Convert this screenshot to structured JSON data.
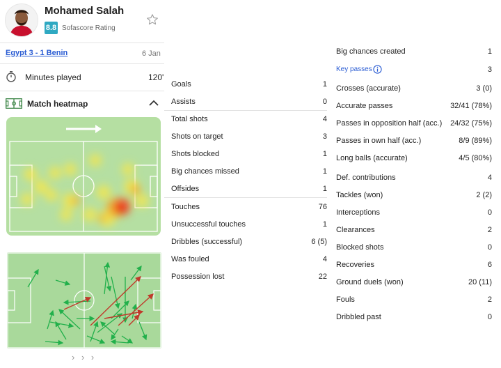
{
  "player": {
    "name": "Mohamed Salah",
    "rating": "8.8",
    "rating_label": "Sofascore Rating",
    "favorite_icon": "star-icon"
  },
  "match": {
    "title": "Egypt 3 - 1 Benin",
    "date": "6 Jan"
  },
  "minutes": {
    "label": "Minutes played",
    "value": "120'"
  },
  "heatmap": {
    "title": "Match heatmap",
    "more": "› › ›"
  },
  "col1": [
    {
      "label": "Goals",
      "value": "1"
    },
    {
      "label": "Assists",
      "value": "0"
    },
    {
      "label": "Total shots",
      "value": "4"
    },
    {
      "label": "Shots on target",
      "value": "3"
    },
    {
      "label": "Shots blocked",
      "value": "1"
    },
    {
      "label": "Big chances missed",
      "value": "1"
    },
    {
      "label": "Offsides",
      "value": "1"
    },
    {
      "label": "Touches",
      "value": "76"
    },
    {
      "label": "Unsuccessful touches",
      "value": "1"
    },
    {
      "label": "Dribbles (successful)",
      "value": "6 (5)"
    },
    {
      "label": "Was fouled",
      "value": "4"
    },
    {
      "label": "Possession lost",
      "value": "22"
    }
  ],
  "col2": [
    {
      "label": "Big chances created",
      "value": "1"
    },
    {
      "label": "Key passes",
      "value": "3"
    },
    {
      "label": "Crosses (accurate)",
      "value": "3 (0)"
    },
    {
      "label": "Accurate passes",
      "value": "32/41 (78%)"
    },
    {
      "label": "Passes in opposition half (acc.)",
      "value": "24/32 (75%)"
    },
    {
      "label": "Passes in own half (acc.)",
      "value": "8/9 (89%)"
    },
    {
      "label": "Long balls (accurate)",
      "value": "4/5 (80%)"
    },
    {
      "label": "Def. contributions",
      "value": "4"
    },
    {
      "label": "Tackles (won)",
      "value": "2 (2)"
    },
    {
      "label": "Interceptions",
      "value": "0"
    },
    {
      "label": "Clearances",
      "value": "2"
    },
    {
      "label": "Blocked shots",
      "value": "0"
    },
    {
      "label": "Recoveries",
      "value": "6"
    },
    {
      "label": "Ground duels (won)",
      "value": "20 (11)"
    },
    {
      "label": "Fouls",
      "value": "2"
    },
    {
      "label": "Dribbled past",
      "value": "0"
    }
  ],
  "colors": {
    "accent": "#2fa9c2",
    "link": "#2a5cd3",
    "pass_success": "#22b04b",
    "pass_fail": "#c0392b",
    "pitch": "#b5dfa2"
  }
}
